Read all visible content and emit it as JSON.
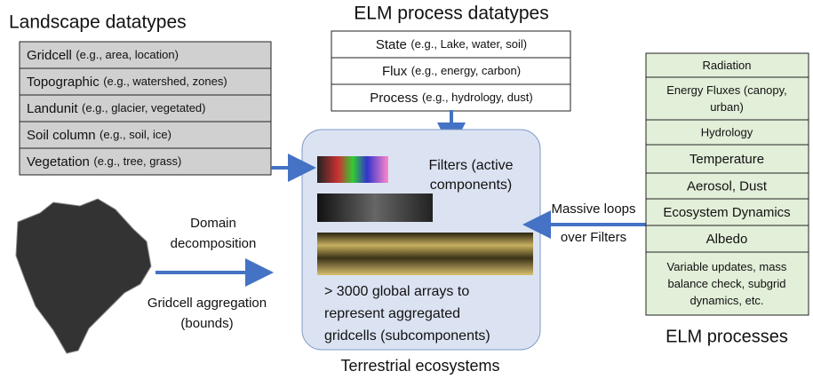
{
  "landscape": {
    "title": "Landscape datatypes",
    "rows": [
      {
        "name": "Gridcell",
        "note": "(e.g., area, location)"
      },
      {
        "name": "Topographic",
        "note": "(e.g., watershed, zones)"
      },
      {
        "name": "Landunit",
        "note": "(e.g., glacier, vegetated)"
      },
      {
        "name": "Soil column",
        "note": "(e.g., soil, ice)"
      },
      {
        "name": "Vegetation",
        "note": "(e.g., tree, grass)"
      }
    ]
  },
  "process_datatypes": {
    "title": "ELM process datatypes",
    "rows": [
      {
        "name": "State",
        "note": "(e.g., Lake, water, soil)"
      },
      {
        "name": "Flux",
        "note": "(e.g., energy, carbon)"
      },
      {
        "name": "Process",
        "note": "(e.g., hydrology, dust)"
      }
    ]
  },
  "ecosystem": {
    "title": "Terrestrial ecosystems",
    "filters": [
      "Filters (active",
      "components)"
    ],
    "arrays": [
      "> 3000 global arrays to",
      "represent aggregated",
      "gridcells (subcomponents)"
    ]
  },
  "domain": {
    "decomposition": [
      "Domain",
      "decomposition"
    ],
    "aggregation": [
      "Gridcell aggregation",
      "(bounds)"
    ]
  },
  "loops": [
    "Massive loops",
    "over Filters"
  ],
  "processes": {
    "title": "ELM processes",
    "rows": [
      [
        "Radiation"
      ],
      [
        "Energy Fluxes (canopy,",
        "urban)"
      ],
      [
        "Hydrology"
      ],
      [
        "Temperature"
      ],
      [
        "Aerosol, Dust"
      ],
      [
        "Ecosystem Dynamics"
      ],
      [
        "Albedo"
      ],
      [
        "Variable updates, mass",
        "balance check, subgrid",
        "dynamics, etc."
      ]
    ]
  }
}
